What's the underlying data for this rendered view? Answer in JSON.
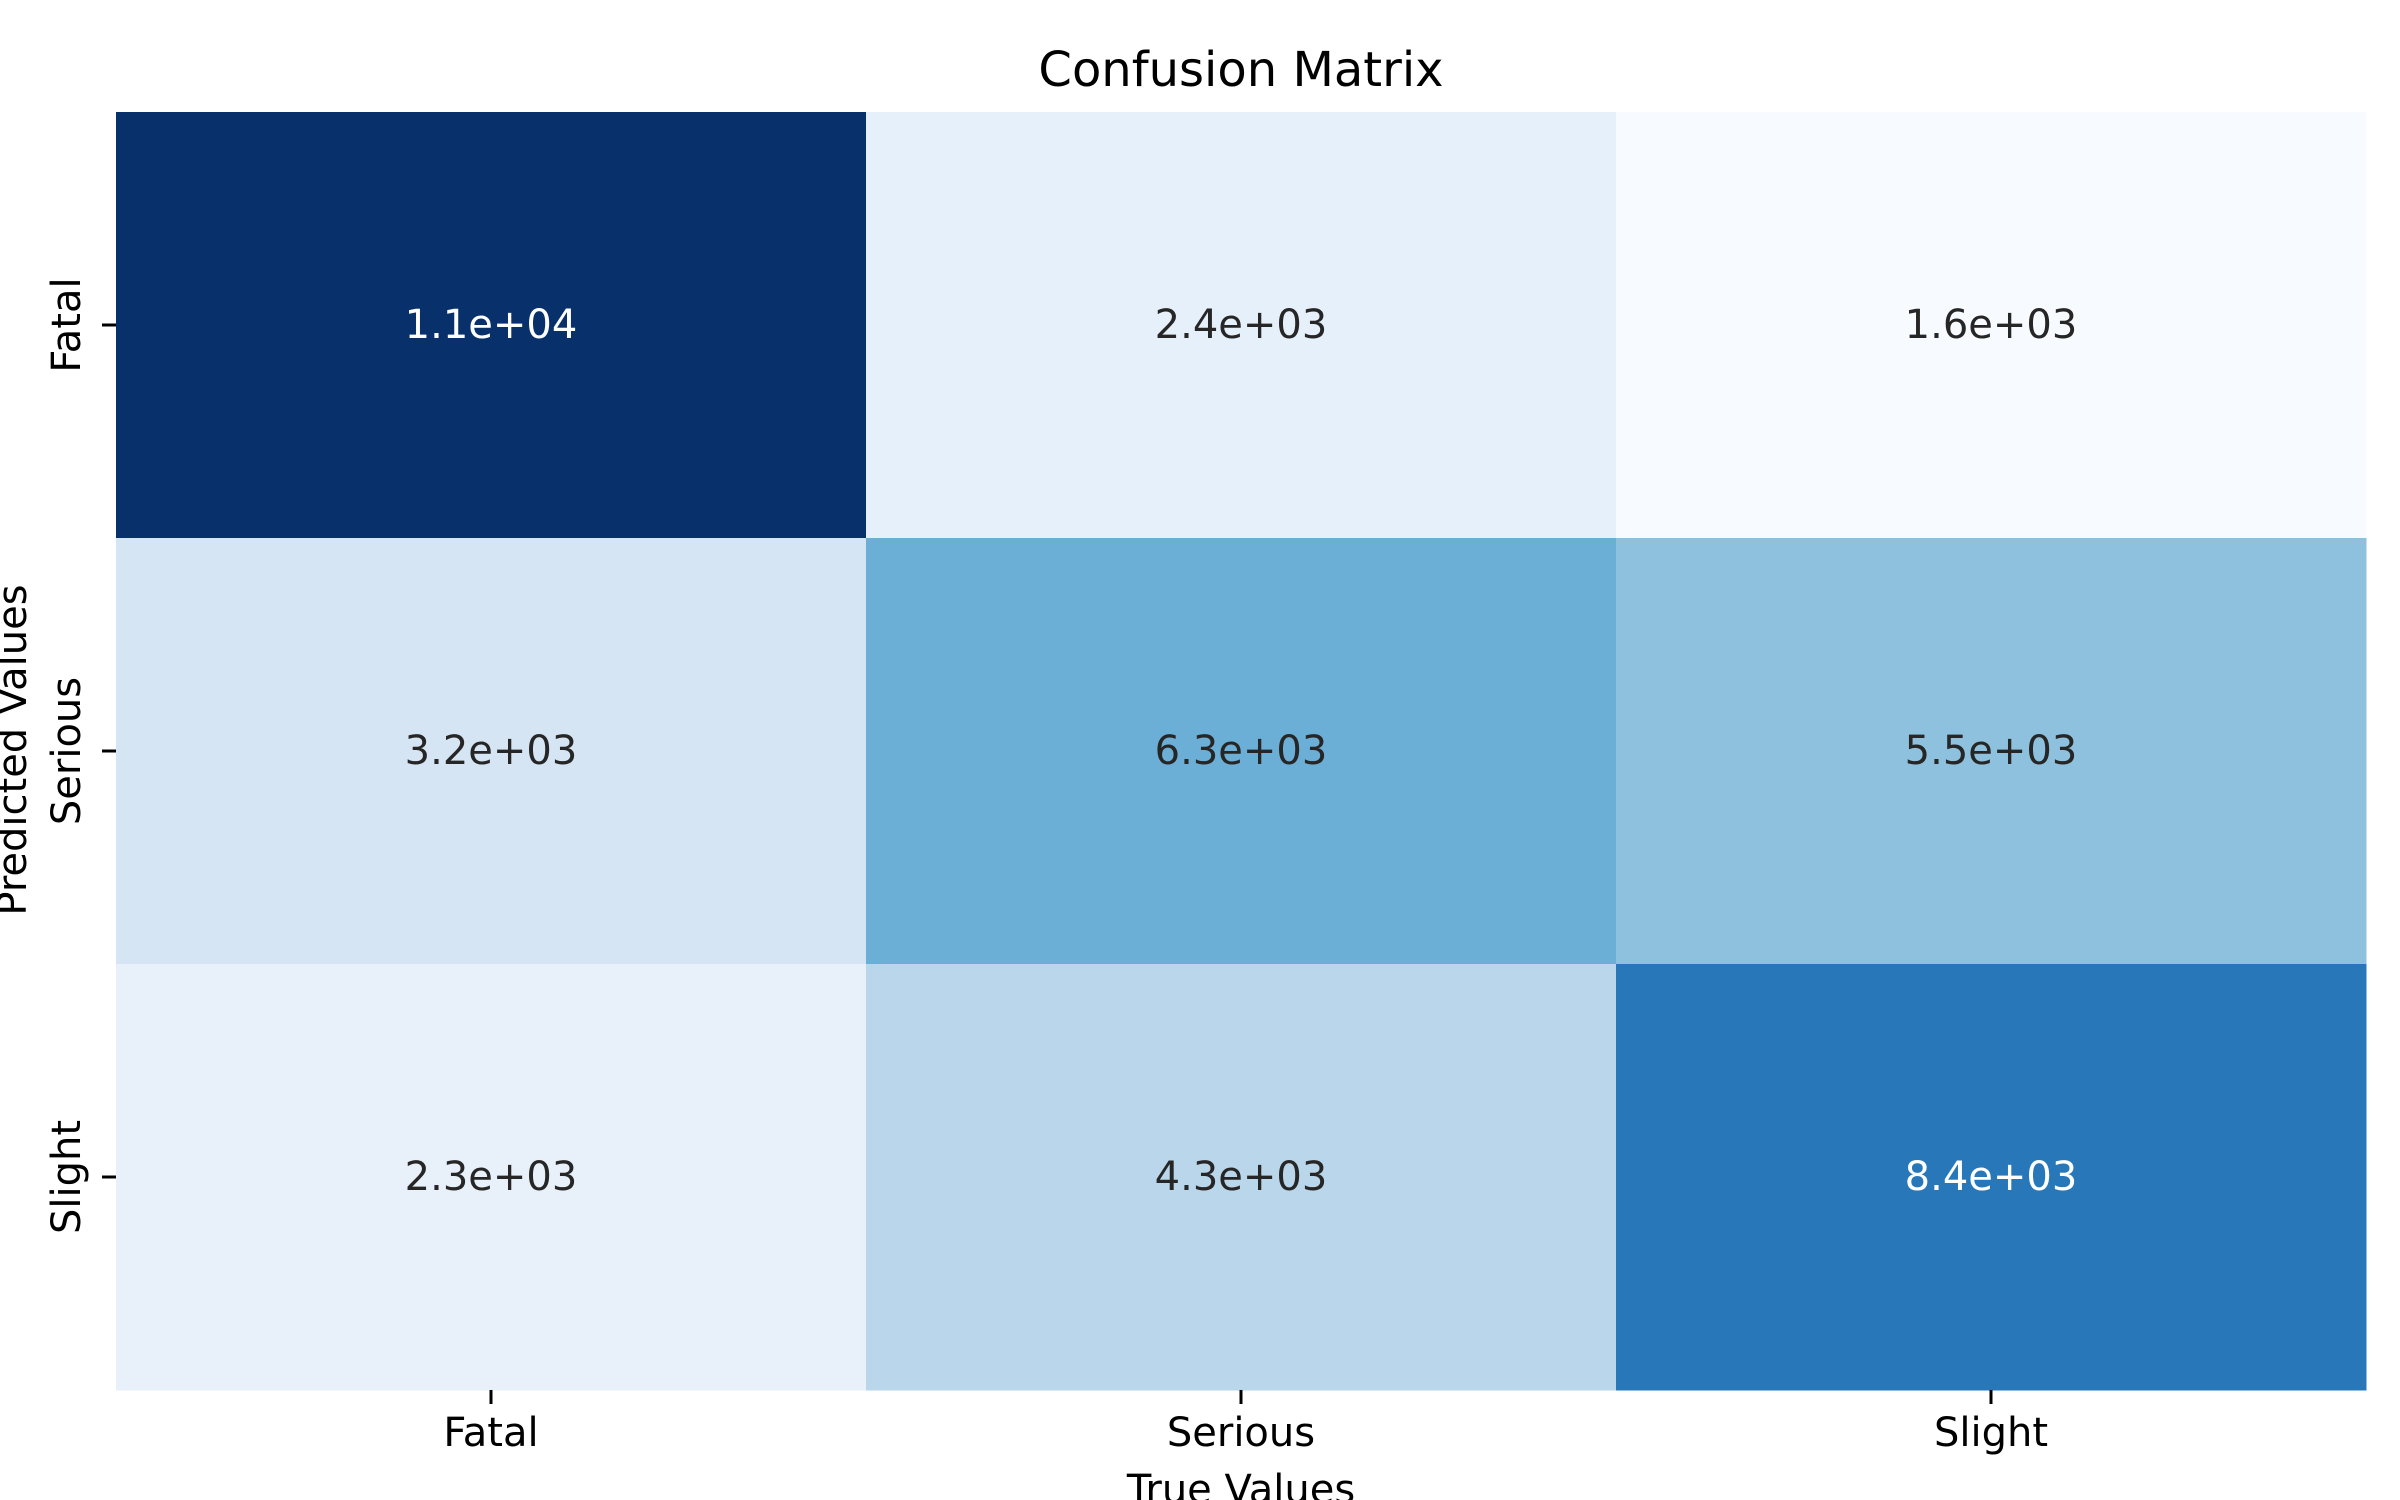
{
  "chart_data": {
    "type": "heatmap",
    "title": "Confusion Matrix",
    "xlabel": "True Values",
    "ylabel": "Predicted Values",
    "x_categories": [
      "Fatal",
      "Serious",
      "Slight"
    ],
    "y_categories": [
      "Fatal",
      "Serious",
      "Slight"
    ],
    "values": [
      [
        11000,
        2400,
        1600
      ],
      [
        3200,
        6300,
        5500
      ],
      [
        2300,
        4300,
        8400
      ]
    ],
    "value_labels": [
      [
        "1.1e+04",
        "2.4e+03",
        "1.6e+03"
      ],
      [
        "3.2e+03",
        "6.3e+03",
        "5.5e+03"
      ],
      [
        "2.3e+03",
        "4.3e+03",
        "8.4e+03"
      ]
    ],
    "colormap": "Blues",
    "colormap_low": "#f7fbff",
    "colormap_high": "#08306b",
    "colorbar": false
  }
}
